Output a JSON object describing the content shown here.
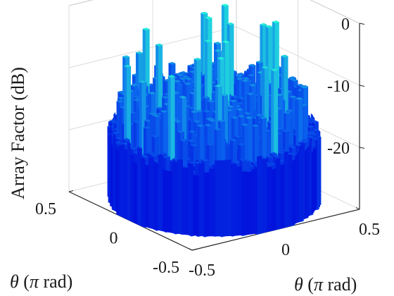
{
  "chart_data": {
    "type": "surface3d",
    "title": "",
    "xlabel": "θ (π rad)",
    "ylabel": "θ (π rad)",
    "zlabel": "Array Factor (dB)",
    "xlim": [
      -0.5,
      0.5
    ],
    "ylim": [
      -0.5,
      0.5
    ],
    "zlim": [
      -30,
      0
    ],
    "x_ticks": [
      -0.5,
      0,
      0.5
    ],
    "y_ticks": [
      -0.5,
      0,
      0.5
    ],
    "z_ticks": [
      0,
      -10,
      -20
    ],
    "x_tick_labels": [
      "-0.5",
      "0",
      "0.5"
    ],
    "y_tick_labels": [
      "-0.5",
      "0",
      "0.5"
    ],
    "z_tick_labels": [
      "0",
      "-10",
      "-20"
    ],
    "grid": true,
    "colormap": "winter",
    "colors": {
      "low": "#0000d8",
      "mid": "#0a62ee",
      "high": "#28ffd8"
    },
    "surface_domain": "disk",
    "surface_radius": 0.5,
    "floor_db": -30,
    "edge_level_db": -19,
    "sidelobe_range_db": [
      -30,
      -12
    ],
    "peak_db": -3
  }
}
